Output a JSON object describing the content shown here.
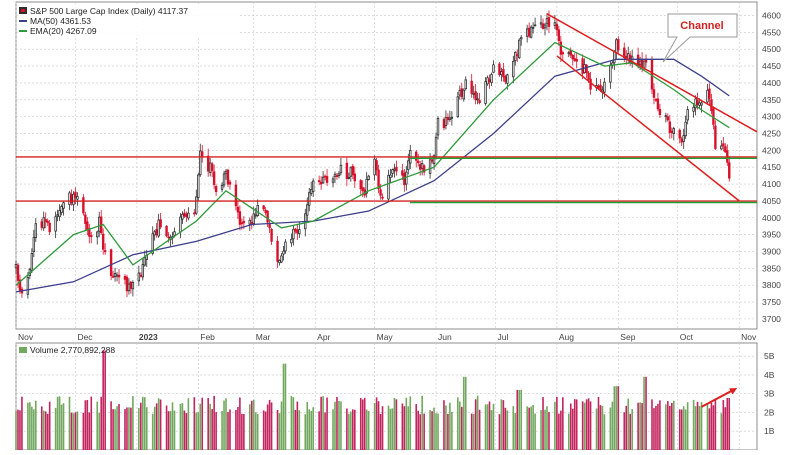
{
  "legend": {
    "price": "S&P 500 Large Cap Index (Daily) 4117.37",
    "ma50": "MA(50) 4361.53",
    "ema20": "EMA(20) 4267.09",
    "volume": "Volume 2,770,892,288"
  },
  "annotation": {
    "label": "Channel"
  },
  "colors": {
    "up": "#2e2e2e",
    "down": "#d8102b",
    "ma50": "#3c3f8c",
    "ema20": "#2e9a3a",
    "resistance": "#d42020",
    "support": "#22a032",
    "channel": "#e01e1e",
    "vol_up": "#72a85f",
    "vol_down": "#c2245e",
    "grid": "#c8c8c8",
    "axis_text": "#444444"
  },
  "chart_data": [
    {
      "type": "candlestick",
      "title": "S&P 500 Large Cap Index (Daily) 4117.37",
      "y_axis": {
        "position": "right",
        "ylim": [
          3670,
          4640
        ],
        "ticks": [
          3700,
          3750,
          3800,
          3850,
          3900,
          3950,
          4000,
          4050,
          4100,
          4150,
          4200,
          4250,
          4300,
          4350,
          4400,
          4450,
          4500,
          4550,
          4600
        ]
      },
      "x_axis": {
        "start": "2022-11-01",
        "end": "2023-11-10",
        "ticks": [
          {
            "label": "Nov",
            "date": "2022-11-01"
          },
          {
            "label": "Dec",
            "date": "2022-12-01"
          },
          {
            "label": "2023",
            "date": "2023-01-01",
            "bold": true
          },
          {
            "label": "Feb",
            "date": "2023-02-01"
          },
          {
            "label": "Mar",
            "date": "2023-03-01"
          },
          {
            "label": "Apr",
            "date": "2023-04-01"
          },
          {
            "label": "May",
            "date": "2023-05-01"
          },
          {
            "label": "Jun",
            "date": "2023-06-01"
          },
          {
            "label": "Jul",
            "date": "2023-07-01"
          },
          {
            "label": "Aug",
            "date": "2023-08-01"
          },
          {
            "label": "Sep",
            "date": "2023-09-01"
          },
          {
            "label": "Oct",
            "date": "2023-10-01"
          },
          {
            "label": "Nov",
            "date": "2023-11-01"
          }
        ]
      },
      "grid": true,
      "close_series": [
        [
          "2022-11-01",
          3850
        ],
        [
          "2022-11-04",
          3770
        ],
        [
          "2022-11-08",
          3830
        ],
        [
          "2022-11-10",
          3960
        ],
        [
          "2022-11-15",
          3990
        ],
        [
          "2022-11-18",
          3960
        ],
        [
          "2022-11-23",
          4020
        ],
        [
          "2022-11-30",
          4070
        ],
        [
          "2022-12-02",
          4060
        ],
        [
          "2022-12-06",
          3990
        ],
        [
          "2022-12-09",
          3930
        ],
        [
          "2022-12-13",
          3990
        ],
        [
          "2022-12-15",
          3900
        ],
        [
          "2022-12-20",
          3820
        ],
        [
          "2022-12-23",
          3840
        ],
        [
          "2022-12-28",
          3790
        ],
        [
          "2023-01-03",
          3830
        ],
        [
          "2023-01-06",
          3890
        ],
        [
          "2023-01-12",
          3980
        ],
        [
          "2023-01-18",
          3930
        ],
        [
          "2023-01-24",
          4010
        ],
        [
          "2023-01-30",
          4020
        ],
        [
          "2023-02-02",
          4180
        ],
        [
          "2023-02-07",
          4150
        ],
        [
          "2023-02-10",
          4090
        ],
        [
          "2023-02-15",
          4130
        ],
        [
          "2023-02-21",
          4000
        ],
        [
          "2023-02-27",
          3980
        ],
        [
          "2023-03-03",
          4040
        ],
        [
          "2023-03-08",
          3990
        ],
        [
          "2023-03-13",
          3860
        ],
        [
          "2023-03-17",
          3920
        ],
        [
          "2023-03-24",
          3970
        ],
        [
          "2023-03-31",
          4100
        ],
        [
          "2023-04-06",
          4110
        ],
        [
          "2023-04-13",
          4140
        ],
        [
          "2023-04-20",
          4130
        ],
        [
          "2023-04-25",
          4070
        ],
        [
          "2023-05-01",
          4160
        ],
        [
          "2023-05-04",
          4060
        ],
        [
          "2023-05-10",
          4140
        ],
        [
          "2023-05-16",
          4110
        ],
        [
          "2023-05-19",
          4190
        ],
        [
          "2023-05-24",
          4140
        ],
        [
          "2023-05-31",
          4180
        ],
        [
          "2023-06-02",
          4280
        ],
        [
          "2023-06-08",
          4290
        ],
        [
          "2023-06-13",
          4360
        ],
        [
          "2023-06-16",
          4410
        ],
        [
          "2023-06-23",
          4350
        ],
        [
          "2023-06-30",
          4450
        ],
        [
          "2023-07-06",
          4410
        ],
        [
          "2023-07-13",
          4510
        ],
        [
          "2023-07-19",
          4560
        ],
        [
          "2023-07-25",
          4570
        ],
        [
          "2023-07-31",
          4590
        ],
        [
          "2023-08-03",
          4500
        ],
        [
          "2023-08-09",
          4460
        ],
        [
          "2023-08-15",
          4440
        ],
        [
          "2023-08-18",
          4370
        ],
        [
          "2023-08-24",
          4380
        ],
        [
          "2023-08-31",
          4510
        ],
        [
          "2023-09-06",
          4470
        ],
        [
          "2023-09-12",
          4460
        ],
        [
          "2023-09-15",
          4450
        ],
        [
          "2023-09-21",
          4330
        ],
        [
          "2023-09-27",
          4270
        ],
        [
          "2023-10-03",
          4230
        ],
        [
          "2023-10-06",
          4310
        ],
        [
          "2023-10-12",
          4350
        ],
        [
          "2023-10-17",
          4370
        ],
        [
          "2023-10-20",
          4220
        ],
        [
          "2023-10-25",
          4190
        ],
        [
          "2023-10-27",
          4117.37
        ]
      ],
      "ma50_series": [
        [
          "2022-11-01",
          3780
        ],
        [
          "2022-11-30",
          3810
        ],
        [
          "2022-12-30",
          3890
        ],
        [
          "2023-01-31",
          3930
        ],
        [
          "2023-02-28",
          3980
        ],
        [
          "2023-03-31",
          3990
        ],
        [
          "2023-04-28",
          4020
        ],
        [
          "2023-05-31",
          4110
        ],
        [
          "2023-06-30",
          4250
        ],
        [
          "2023-07-31",
          4420
        ],
        [
          "2023-08-31",
          4470
        ],
        [
          "2023-09-29",
          4470
        ],
        [
          "2023-10-13",
          4420
        ],
        [
          "2023-10-27",
          4361.53
        ]
      ],
      "ema20_series": [
        [
          "2022-11-01",
          3800
        ],
        [
          "2022-11-30",
          3950
        ],
        [
          "2022-12-15",
          3980
        ],
        [
          "2022-12-30",
          3860
        ],
        [
          "2023-01-31",
          3990
        ],
        [
          "2023-02-15",
          4080
        ],
        [
          "2023-03-15",
          3970
        ],
        [
          "2023-03-31",
          3990
        ],
        [
          "2023-04-28",
          4080
        ],
        [
          "2023-05-31",
          4150
        ],
        [
          "2023-06-30",
          4350
        ],
        [
          "2023-07-31",
          4520
        ],
        [
          "2023-08-25",
          4450
        ],
        [
          "2023-09-08",
          4460
        ],
        [
          "2023-09-29",
          4380
        ],
        [
          "2023-10-13",
          4320
        ],
        [
          "2023-10-27",
          4267.09
        ]
      ],
      "horizontal_levels": [
        {
          "name": "resistance",
          "value": 4178
        },
        {
          "name": "support",
          "value": 4178
        },
        {
          "name": "resistance",
          "value": 4047
        },
        {
          "name": "support",
          "value": 4047
        }
      ],
      "channel_lines": [
        {
          "from": [
            "2023-07-27",
            4605
          ],
          "to": [
            "2023-11-10",
            4255
          ]
        },
        {
          "from": [
            "2023-08-01",
            4480
          ],
          "to": [
            "2023-11-01",
            4050
          ]
        }
      ]
    },
    {
      "type": "bar",
      "title": "Volume 2,770,892,288",
      "y_axis": {
        "position": "right",
        "ylim": [
          0,
          5.7
        ],
        "ticks": [
          {
            "label": "1B",
            "value": 1
          },
          {
            "label": "2B",
            "value": 2
          },
          {
            "label": "3B",
            "value": 3
          },
          {
            "label": "4B",
            "value": 4
          },
          {
            "label": "5B",
            "value": 5
          }
        ]
      },
      "spike_values_billions": [
        [
          "2022-12-16",
          5.3
        ],
        [
          "2023-03-17",
          4.6
        ],
        [
          "2023-06-16",
          3.9
        ],
        [
          "2023-07-13",
          3.2
        ],
        [
          "2023-08-31",
          3.4
        ],
        [
          "2023-09-15",
          3.9
        ],
        [
          "2023-10-27",
          2.77
        ]
      ],
      "typical_range_billions": [
        1.9,
        2.9
      ],
      "arrow_annotation": {
        "from": [
          "2023-10-13",
          2.3
        ],
        "to": [
          "2023-10-31",
          3.3
        ]
      }
    }
  ]
}
